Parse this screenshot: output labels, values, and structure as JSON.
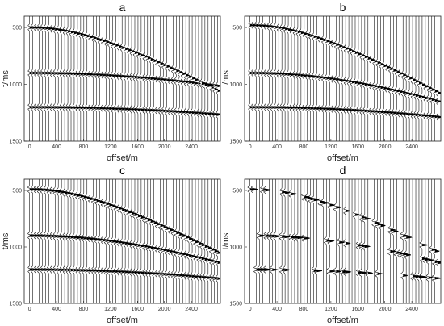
{
  "chart_data": [
    {
      "panel": "a",
      "type": "seismic-wiggle",
      "title": "a",
      "xlabel": "offset/m",
      "ylabel": "t/ms",
      "xticks": [
        0,
        400,
        800,
        1200,
        1600,
        2000,
        2400
      ],
      "yticks": [
        500,
        1000,
        1500
      ],
      "xlim": [
        -80,
        2830
      ],
      "ylim": [
        400,
        1500
      ],
      "events": [
        {
          "t0": 500,
          "velocity": 3000,
          "amplitude": 1.0
        },
        {
          "t0": 900,
          "velocity": 6000,
          "amplitude": 1.0
        },
        {
          "t0": 1200,
          "velocity": 7000,
          "amplitude": 1.0
        }
      ]
    },
    {
      "panel": "b",
      "type": "seismic-wiggle",
      "title": "b",
      "xlabel": "offset/m",
      "ylabel": "t/ms",
      "xticks": [
        0,
        400,
        800,
        1200,
        1600,
        2000,
        2400
      ],
      "yticks": [
        500,
        1000,
        1500
      ],
      "xlim": [
        -80,
        2830
      ],
      "ylim": [
        400,
        1500
      ],
      "events": [
        {
          "t0": 480,
          "velocity": 2900,
          "amplitude": 1.0
        },
        {
          "t0": 900,
          "velocity": 3900,
          "amplitude": 1.0
        },
        {
          "t0": 1200,
          "velocity": 6000,
          "amplitude": 1.0
        }
      ]
    },
    {
      "panel": "c",
      "type": "seismic-wiggle",
      "title": "c",
      "xlabel": "offset/m",
      "ylabel": "t/ms",
      "xticks": [
        0,
        400,
        800,
        1200,
        1600,
        2000,
        2400
      ],
      "yticks": [
        500,
        1000,
        1500
      ],
      "xlim": [
        -80,
        2830
      ],
      "ylim": [
        400,
        1500
      ],
      "events": [
        {
          "t0": 490,
          "velocity": 3000,
          "amplitude": 1.2
        },
        {
          "t0": 900,
          "velocity": 4000,
          "amplitude": 1.1
        },
        {
          "t0": 1200,
          "velocity": 6300,
          "amplitude": 1.0
        }
      ]
    },
    {
      "panel": "d",
      "type": "seismic-wiggle",
      "title": "d",
      "xlabel": "offset/m",
      "ylabel": "t/ms",
      "xticks": [
        0,
        400,
        800,
        1200,
        1600,
        2000,
        2400
      ],
      "yticks": [
        500,
        1000,
        1500
      ],
      "xlim": [
        -80,
        2830
      ],
      "ylim": [
        400,
        1500
      ],
      "events": [
        {
          "t0": 490,
          "velocity": 3000,
          "amplitude": 1.0
        },
        {
          "t0": 900,
          "velocity": 4000,
          "amplitude": 1.0
        },
        {
          "t0": 1200,
          "velocity": 6300,
          "amplitude": 1.0
        }
      ],
      "sparse": true
    }
  ]
}
